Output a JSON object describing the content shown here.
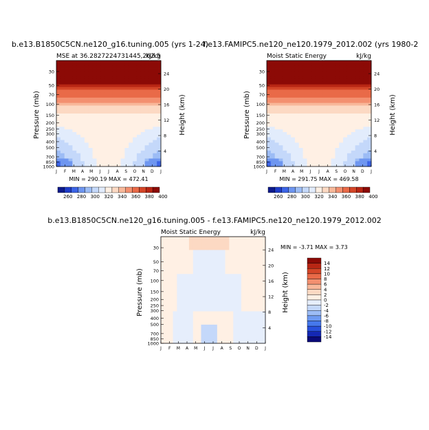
{
  "chart_data": [
    {
      "type": "heatmap",
      "title": "b.e13.B1850C5CN.ne120_g16.tuning.005 (yrs 1-24)",
      "subtitle_left": "MSE at 36.2827224731445,262.5",
      "subtitle_right": "kJ/kg",
      "xlabel": "",
      "ylabel": "Pressure (mb)",
      "ylabel_right": "Height (km)",
      "x_ticks": [
        "J",
        "F",
        "M",
        "A",
        "M",
        "J",
        "J",
        "A",
        "S",
        "O",
        "N",
        "D",
        "J"
      ],
      "y_ticks": [
        30,
        50,
        70,
        100,
        150,
        200,
        250,
        300,
        400,
        500,
        700,
        850,
        1000
      ],
      "y_range": [
        1000,
        20
      ],
      "y_scale": "log",
      "height_ticks": [
        4,
        8,
        12,
        16,
        20,
        24
      ],
      "stats_label": "MIN = 290.19  MAX = 472.41",
      "colorbar": {
        "orientation": "horizontal",
        "labels": [
          260,
          280,
          300,
          320,
          340,
          360,
          380,
          400
        ]
      }
    },
    {
      "type": "heatmap",
      "title": "f.e13.FAMIPC5.ne120_ne120.1979_2012.002 (yrs 1980-2",
      "subtitle_left": "Moist Static Energy",
      "subtitle_right": "kJ/kg",
      "xlabel": "",
      "ylabel": "Pressure (mb)",
      "ylabel_right": "Height (km)",
      "x_ticks": [
        "J",
        "F",
        "M",
        "A",
        "M",
        "J",
        "J",
        "A",
        "S",
        "O",
        "N",
        "D",
        "J"
      ],
      "y_ticks": [
        30,
        50,
        70,
        100,
        150,
        200,
        250,
        300,
        400,
        500,
        700,
        850,
        1000
      ],
      "y_range": [
        1000,
        20
      ],
      "y_scale": "log",
      "height_ticks": [
        4,
        8,
        12,
        16,
        20,
        24
      ],
      "stats_label": "MIN = 291.75  MAX = 469.58",
      "colorbar": {
        "orientation": "horizontal",
        "labels": [
          260,
          280,
          300,
          320,
          340,
          360,
          380,
          400
        ]
      }
    },
    {
      "type": "heatmap",
      "title": "b.e13.B1850C5CN.ne120_g16.tuning.005 - f.e13.FAMIPC5.ne120_ne120.1979_2012.002",
      "subtitle_left": "Moist Static Energy",
      "subtitle_right": "kJ/kg",
      "xlabel": "",
      "ylabel": "Pressure (mb)",
      "ylabel_right": "Height (km)",
      "x_ticks": [
        "J",
        "F",
        "M",
        "A",
        "M",
        "J",
        "J",
        "A",
        "S",
        "O",
        "N",
        "D",
        "J"
      ],
      "y_ticks": [
        30,
        50,
        70,
        100,
        150,
        200,
        250,
        300,
        400,
        500,
        700,
        850,
        1000
      ],
      "y_range": [
        1000,
        20
      ],
      "y_scale": "log",
      "height_ticks": [
        4,
        8,
        12,
        16,
        20,
        24
      ],
      "stats_label": "MIN =   -3.71  MAX =    3.73",
      "colorbar": {
        "orientation": "vertical",
        "labels": [
          14,
          12,
          10,
          8,
          6,
          4,
          2,
          0,
          -2,
          -4,
          -6,
          -8,
          -10,
          -12,
          -14
        ]
      }
    }
  ],
  "colors": {
    "abs_scale": [
      "#0d1a8c",
      "#1f3cc8",
      "#3c64e6",
      "#6e96f0",
      "#9cbcf5",
      "#c4d8fa",
      "#e2ecfc",
      "#fff0e4",
      "#fcd9c3",
      "#f8b89a",
      "#f39070",
      "#e96a48",
      "#d44628",
      "#b82614",
      "#8c0a06"
    ],
    "diff_scale": [
      "#0a0a78",
      "#1428b4",
      "#2850dc",
      "#4678ec",
      "#6e9af2",
      "#9cbcf6",
      "#c4d8fa",
      "#e6eefc",
      "#fff0e4",
      "#fcd9c3",
      "#f8b89a",
      "#f39070",
      "#e96a48",
      "#d44628",
      "#b82614",
      "#8c0a06"
    ]
  }
}
